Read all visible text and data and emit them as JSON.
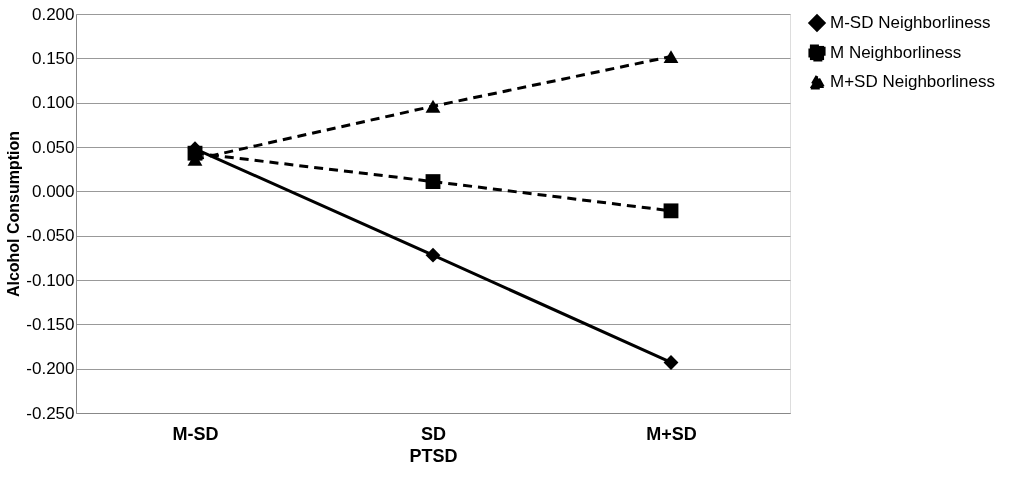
{
  "chart_data": {
    "type": "line",
    "xlabel": "PTSD",
    "ylabel": "Alcohol Consumption",
    "categories": [
      "M-SD",
      "SD",
      "M+SD"
    ],
    "series": [
      {
        "name": "M-SD Neighborliness",
        "color": "#000000",
        "marker": "diamond",
        "line_style": "solid",
        "values": [
          0.048,
          -0.072,
          -0.193
        ]
      },
      {
        "name": "M Neighborliness",
        "color": "#000000",
        "marker": "square",
        "line_style": "dashed",
        "values": [
          0.043,
          0.011,
          -0.022
        ]
      },
      {
        "name": "M+SD Neighborliness",
        "color": "#000000",
        "marker": "triangle",
        "line_style": "dashed",
        "values": [
          0.036,
          0.096,
          0.152
        ]
      }
    ],
    "ylim": [
      -0.25,
      0.2
    ],
    "yticks": [
      {
        "value": -0.25,
        "label": "-0.250"
      },
      {
        "value": -0.2,
        "label": "-0.200"
      },
      {
        "value": -0.15,
        "label": "-0.150"
      },
      {
        "value": -0.1,
        "label": "-0.100"
      },
      {
        "value": -0.05,
        "label": "-0.050"
      },
      {
        "value": 0,
        "label": "0.000"
      },
      {
        "value": 0.05,
        "label": "0.050"
      },
      {
        "value": 0.1,
        "label": "0.100"
      },
      {
        "value": 0.15,
        "label": "0.150"
      },
      {
        "value": 0.2,
        "label": "0.200"
      }
    ],
    "grid": "y",
    "legend": "right"
  }
}
